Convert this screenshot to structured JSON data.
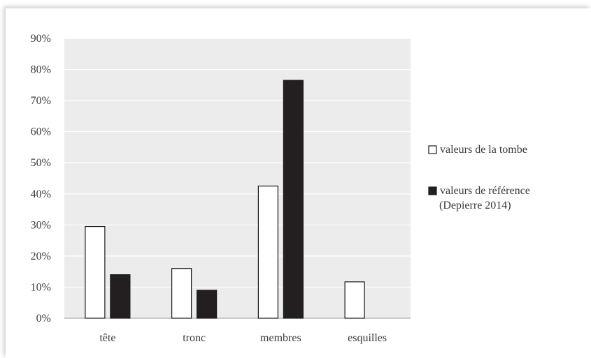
{
  "chart_data": {
    "type": "bar",
    "categories": [
      "tête",
      "tronc",
      "membres",
      "esquilles"
    ],
    "series": [
      {
        "name": "valeurs de la tombe",
        "values": [
          29.5,
          16,
          42.5,
          11.7
        ],
        "color": "#ffffff",
        "stroke": "#1a1a1a"
      },
      {
        "name": "valeurs de référence (Depierre 2014)",
        "legend_lines": [
          "valeurs de référence",
          "(Depierre 2014)"
        ],
        "values": [
          14,
          9,
          76.5,
          0
        ],
        "color": "#231f20",
        "stroke": "#1a1a1a"
      }
    ],
    "ylim": [
      0,
      90
    ],
    "yticks": [
      0,
      10,
      20,
      30,
      40,
      50,
      60,
      70,
      80,
      90
    ],
    "ytick_labels": [
      "0%",
      "10%",
      "20%",
      "30%",
      "40%",
      "50%",
      "60%",
      "70%",
      "80%",
      "90%"
    ],
    "grid": true,
    "plot_background": "#ececec",
    "legend_position": "right"
  }
}
